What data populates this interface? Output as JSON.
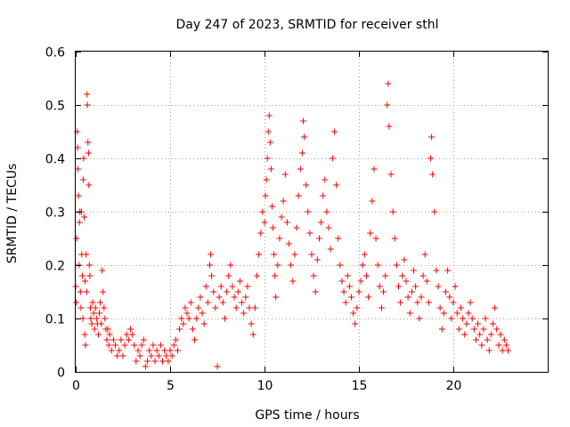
{
  "chart_data": {
    "type": "scatter",
    "title": "Day 247 of 2023, SRMTID for receiver sthl",
    "xlabel": "GPS time / hours",
    "ylabel": "SRMTID / TECUs",
    "xlim": [
      0,
      25
    ],
    "ylim": [
      0,
      0.6
    ],
    "x_ticks": [
      0,
      5,
      10,
      15,
      20
    ],
    "x_tick_labels": [
      "0",
      "5",
      "10",
      "15",
      "20"
    ],
    "y_ticks": [
      0,
      0.1,
      0.2,
      0.3,
      0.4,
      0.5,
      0.6
    ],
    "y_tick_labels": [
      "0",
      "0.1",
      "0.2",
      "0.3",
      "0.4",
      "0.5",
      "0.6"
    ],
    "grid": true,
    "marker": "+",
    "color": "#ff0000",
    "series": [
      {
        "name": "SRMTID",
        "points": [
          [
            0.0,
            0.16
          ],
          [
            0.02,
            0.13
          ],
          [
            0.05,
            0.25
          ],
          [
            0.08,
            0.45
          ],
          [
            0.1,
            0.42
          ],
          [
            0.12,
            0.38
          ],
          [
            0.15,
            0.33
          ],
          [
            0.18,
            0.2
          ],
          [
            0.2,
            0.28
          ],
          [
            0.22,
            0.3
          ],
          [
            0.25,
            0.15
          ],
          [
            0.28,
            0.12
          ],
          [
            0.3,
            0.3
          ],
          [
            0.32,
            0.22
          ],
          [
            0.35,
            0.18
          ],
          [
            0.38,
            0.1
          ],
          [
            0.4,
            0.36
          ],
          [
            0.42,
            0.4
          ],
          [
            0.45,
            0.29
          ],
          [
            0.48,
            0.07
          ],
          [
            0.5,
            0.17
          ],
          [
            0.52,
            0.05
          ],
          [
            0.55,
            0.22
          ],
          [
            0.58,
            0.15
          ],
          [
            0.6,
            0.52
          ],
          [
            0.62,
            0.5
          ],
          [
            0.65,
            0.43
          ],
          [
            0.68,
            0.41
          ],
          [
            0.7,
            0.35
          ],
          [
            0.72,
            0.2
          ],
          [
            0.75,
            0.18
          ],
          [
            0.78,
            0.12
          ],
          [
            0.8,
            0.1
          ],
          [
            0.85,
            0.09
          ],
          [
            0.9,
            0.13
          ],
          [
            0.95,
            0.11
          ],
          [
            1.0,
            0.08
          ],
          [
            1.05,
            0.12
          ],
          [
            1.1,
            0.1
          ],
          [
            1.15,
            0.09
          ],
          [
            1.2,
            0.07
          ],
          [
            1.25,
            0.11
          ],
          [
            1.3,
            0.13
          ],
          [
            1.35,
            0.09
          ],
          [
            1.4,
            0.19
          ],
          [
            1.45,
            0.15
          ],
          [
            1.5,
            0.12
          ],
          [
            1.55,
            0.1
          ],
          [
            1.6,
            0.08
          ],
          [
            1.65,
            0.06
          ],
          [
            1.7,
            0.08
          ],
          [
            1.75,
            0.05
          ],
          [
            1.8,
            0.07
          ],
          [
            1.9,
            0.04
          ],
          [
            2.0,
            0.06
          ],
          [
            2.1,
            0.05
          ],
          [
            2.2,
            0.03
          ],
          [
            2.3,
            0.04
          ],
          [
            2.4,
            0.06
          ],
          [
            2.5,
            0.03
          ],
          [
            2.6,
            0.05
          ],
          [
            2.7,
            0.07
          ],
          [
            2.8,
            0.06
          ],
          [
            2.9,
            0.08
          ],
          [
            3.0,
            0.07
          ],
          [
            3.1,
            0.05
          ],
          [
            3.2,
            0.02
          ],
          [
            3.3,
            0.04
          ],
          [
            3.4,
            0.03
          ],
          [
            3.5,
            0.05
          ],
          [
            3.6,
            0.06
          ],
          [
            3.7,
            0.01
          ],
          [
            3.8,
            0.02
          ],
          [
            3.9,
            0.04
          ],
          [
            4.0,
            0.03
          ],
          [
            4.1,
            0.05
          ],
          [
            4.2,
            0.02
          ],
          [
            4.3,
            0.04
          ],
          [
            4.4,
            0.03
          ],
          [
            4.5,
            0.05
          ],
          [
            4.6,
            0.02
          ],
          [
            4.7,
            0.04
          ],
          [
            4.8,
            0.03
          ],
          [
            4.9,
            0.02
          ],
          [
            5.0,
            0.04
          ],
          [
            5.1,
            0.03
          ],
          [
            5.2,
            0.05
          ],
          [
            5.3,
            0.06
          ],
          [
            5.4,
            0.04
          ],
          [
            5.5,
            0.08
          ],
          [
            5.6,
            0.1
          ],
          [
            5.7,
            0.09
          ],
          [
            5.8,
            0.12
          ],
          [
            5.9,
            0.11
          ],
          [
            6.0,
            0.1
          ],
          [
            6.1,
            0.13
          ],
          [
            6.2,
            0.08
          ],
          [
            6.3,
            0.06
          ],
          [
            6.4,
            0.1
          ],
          [
            6.5,
            0.12
          ],
          [
            6.6,
            0.14
          ],
          [
            6.7,
            0.11
          ],
          [
            6.8,
            0.09
          ],
          [
            6.9,
            0.16
          ],
          [
            7.0,
            0.13
          ],
          [
            7.1,
            0.2
          ],
          [
            7.15,
            0.22
          ],
          [
            7.2,
            0.18
          ],
          [
            7.3,
            0.15
          ],
          [
            7.4,
            0.12
          ],
          [
            7.5,
            0.01
          ],
          [
            7.6,
            0.14
          ],
          [
            7.7,
            0.16
          ],
          [
            7.8,
            0.13
          ],
          [
            7.9,
            0.1
          ],
          [
            8.0,
            0.15
          ],
          [
            8.1,
            0.18
          ],
          [
            8.2,
            0.2
          ],
          [
            8.3,
            0.16
          ],
          [
            8.4,
            0.14
          ],
          [
            8.5,
            0.12
          ],
          [
            8.6,
            0.15
          ],
          [
            8.7,
            0.17
          ],
          [
            8.8,
            0.13
          ],
          [
            8.9,
            0.11
          ],
          [
            9.0,
            0.14
          ],
          [
            9.1,
            0.16
          ],
          [
            9.2,
            0.12
          ],
          [
            9.3,
            0.09
          ],
          [
            9.4,
            0.07
          ],
          [
            9.5,
            0.12
          ],
          [
            9.6,
            0.18
          ],
          [
            9.7,
            0.22
          ],
          [
            9.8,
            0.26
          ],
          [
            9.9,
            0.3
          ],
          [
            10.0,
            0.28
          ],
          [
            10.05,
            0.33
          ],
          [
            10.1,
            0.36
          ],
          [
            10.15,
            0.4
          ],
          [
            10.2,
            0.45
          ],
          [
            10.25,
            0.48
          ],
          [
            10.3,
            0.43
          ],
          [
            10.35,
            0.38
          ],
          [
            10.4,
            0.31
          ],
          [
            10.45,
            0.27
          ],
          [
            10.5,
            0.22
          ],
          [
            10.55,
            0.18
          ],
          [
            10.6,
            0.14
          ],
          [
            10.7,
            0.2
          ],
          [
            10.8,
            0.25
          ],
          [
            10.9,
            0.29
          ],
          [
            11.0,
            0.32
          ],
          [
            11.1,
            0.37
          ],
          [
            11.2,
            0.28
          ],
          [
            11.3,
            0.24
          ],
          [
            11.4,
            0.2
          ],
          [
            11.5,
            0.17
          ],
          [
            11.6,
            0.22
          ],
          [
            11.7,
            0.27
          ],
          [
            11.8,
            0.33
          ],
          [
            11.9,
            0.38
          ],
          [
            12.0,
            0.41
          ],
          [
            12.05,
            0.47
          ],
          [
            12.1,
            0.44
          ],
          [
            12.2,
            0.35
          ],
          [
            12.3,
            0.3
          ],
          [
            12.4,
            0.26
          ],
          [
            12.5,
            0.22
          ],
          [
            12.6,
            0.18
          ],
          [
            12.7,
            0.15
          ],
          [
            12.8,
            0.21
          ],
          [
            12.9,
            0.25
          ],
          [
            13.0,
            0.28
          ],
          [
            13.1,
            0.33
          ],
          [
            13.2,
            0.36
          ],
          [
            13.3,
            0.3
          ],
          [
            13.4,
            0.27
          ],
          [
            13.5,
            0.23
          ],
          [
            13.6,
            0.4
          ],
          [
            13.7,
            0.45
          ],
          [
            13.8,
            0.35
          ],
          [
            13.9,
            0.25
          ],
          [
            14.0,
            0.2
          ],
          [
            14.1,
            0.17
          ],
          [
            14.2,
            0.15
          ],
          [
            14.3,
            0.13
          ],
          [
            14.4,
            0.18
          ],
          [
            14.5,
            0.16
          ],
          [
            14.6,
            0.14
          ],
          [
            14.7,
            0.11
          ],
          [
            14.8,
            0.09
          ],
          [
            14.9,
            0.12
          ],
          [
            15.0,
            0.15
          ],
          [
            15.1,
            0.17
          ],
          [
            15.2,
            0.2
          ],
          [
            15.3,
            0.22
          ],
          [
            15.4,
            0.18
          ],
          [
            15.5,
            0.14
          ],
          [
            15.6,
            0.26
          ],
          [
            15.7,
            0.32
          ],
          [
            15.8,
            0.38
          ],
          [
            15.9,
            0.25
          ],
          [
            16.0,
            0.2
          ],
          [
            16.1,
            0.16
          ],
          [
            16.2,
            0.12
          ],
          [
            16.3,
            0.15
          ],
          [
            16.4,
            0.18
          ],
          [
            16.5,
            0.5
          ],
          [
            16.55,
            0.54
          ],
          [
            16.6,
            0.46
          ],
          [
            16.7,
            0.37
          ],
          [
            16.8,
            0.3
          ],
          [
            16.9,
            0.25
          ],
          [
            17.0,
            0.2
          ],
          [
            17.1,
            0.16
          ],
          [
            17.2,
            0.13
          ],
          [
            17.3,
            0.18
          ],
          [
            17.4,
            0.21
          ],
          [
            17.5,
            0.17
          ],
          [
            17.6,
            0.14
          ],
          [
            17.7,
            0.11
          ],
          [
            17.8,
            0.15
          ],
          [
            17.9,
            0.19
          ],
          [
            18.0,
            0.16
          ],
          [
            18.1,
            0.13
          ],
          [
            18.2,
            0.1
          ],
          [
            18.3,
            0.14
          ],
          [
            18.4,
            0.18
          ],
          [
            18.5,
            0.22
          ],
          [
            18.6,
            0.17
          ],
          [
            18.7,
            0.13
          ],
          [
            18.8,
            0.4
          ],
          [
            18.85,
            0.44
          ],
          [
            18.9,
            0.37
          ],
          [
            19.0,
            0.3
          ],
          [
            19.1,
            0.19
          ],
          [
            19.2,
            0.16
          ],
          [
            19.3,
            0.12
          ],
          [
            19.4,
            0.08
          ],
          [
            19.5,
            0.11
          ],
          [
            19.6,
            0.15
          ],
          [
            19.7,
            0.19
          ],
          [
            19.8,
            0.14
          ],
          [
            19.9,
            0.1
          ],
          [
            20.0,
            0.13
          ],
          [
            20.1,
            0.16
          ],
          [
            20.2,
            0.11
          ],
          [
            20.3,
            0.08
          ],
          [
            20.4,
            0.12
          ],
          [
            20.5,
            0.1
          ],
          [
            20.6,
            0.07
          ],
          [
            20.7,
            0.09
          ],
          [
            20.8,
            0.11
          ],
          [
            20.9,
            0.13
          ],
          [
            21.0,
            0.1
          ],
          [
            21.1,
            0.08
          ],
          [
            21.2,
            0.06
          ],
          [
            21.3,
            0.09
          ],
          [
            21.4,
            0.07
          ],
          [
            21.5,
            0.05
          ],
          [
            21.6,
            0.08
          ],
          [
            21.7,
            0.1
          ],
          [
            21.8,
            0.06
          ],
          [
            21.9,
            0.04
          ],
          [
            22.0,
            0.07
          ],
          [
            22.1,
            0.09
          ],
          [
            22.2,
            0.12
          ],
          [
            22.3,
            0.08
          ],
          [
            22.4,
            0.05
          ],
          [
            22.5,
            0.07
          ],
          [
            22.6,
            0.04
          ],
          [
            22.7,
            0.06
          ],
          [
            22.8,
            0.05
          ],
          [
            22.9,
            0.04
          ]
        ]
      }
    ]
  }
}
